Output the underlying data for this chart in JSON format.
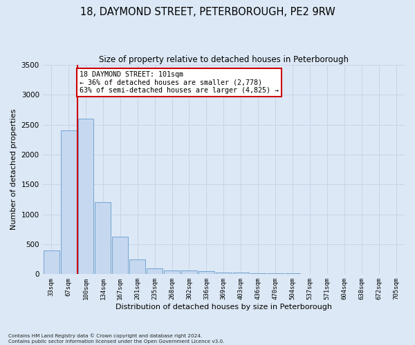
{
  "title": "18, DAYMOND STREET, PETERBOROUGH, PE2 9RW",
  "subtitle": "Size of property relative to detached houses in Peterborough",
  "xlabel": "Distribution of detached houses by size in Peterborough",
  "ylabel": "Number of detached properties",
  "bin_labels": [
    "33sqm",
    "67sqm",
    "100sqm",
    "134sqm",
    "167sqm",
    "201sqm",
    "235sqm",
    "268sqm",
    "302sqm",
    "336sqm",
    "369sqm",
    "403sqm",
    "436sqm",
    "470sqm",
    "504sqm",
    "537sqm",
    "571sqm",
    "604sqm",
    "638sqm",
    "672sqm",
    "705sqm"
  ],
  "bar_values": [
    400,
    2400,
    2600,
    1200,
    630,
    250,
    100,
    65,
    60,
    50,
    30,
    30,
    20,
    15,
    10,
    5,
    5,
    0,
    0,
    0,
    0
  ],
  "bar_color": "#c5d8f0",
  "bar_edgecolor": "#6699cc",
  "property_bin_index": 2,
  "annotation_title": "18 DAYMOND STREET: 101sqm",
  "annotation_line1": "← 36% of detached houses are smaller (2,778)",
  "annotation_line2": "63% of semi-detached houses are larger (4,825) →",
  "annotation_box_color": "#ffffff",
  "annotation_box_edgecolor": "#cc0000",
  "vline_color": "#cc0000",
  "ylim": [
    0,
    3500
  ],
  "yticks": [
    0,
    500,
    1000,
    1500,
    2000,
    2500,
    3000,
    3500
  ],
  "grid_color": "#c8d4e8",
  "bg_color": "#dce8f5",
  "fig_bg_color": "#dce8f5",
  "title_fontsize": 10.5,
  "subtitle_fontsize": 8.5,
  "footnote1": "Contains HM Land Registry data © Crown copyright and database right 2024.",
  "footnote2": "Contains public sector information licensed under the Open Government Licence v3.0."
}
